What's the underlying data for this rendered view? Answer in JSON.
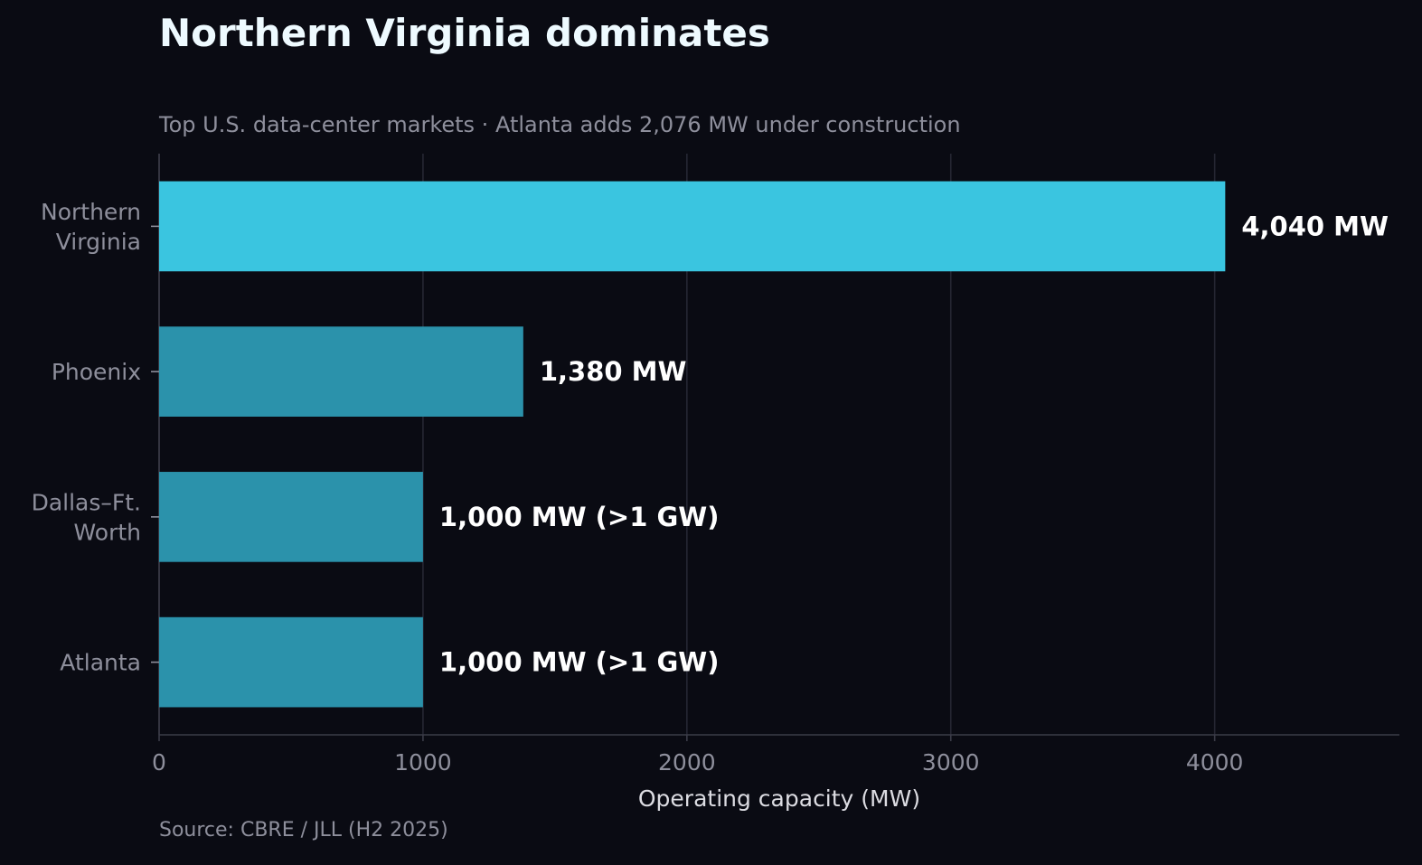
{
  "chart_data": {
    "type": "bar",
    "orientation": "horizontal",
    "title": "Northern Virginia dominates",
    "subtitle": "Top U.S. data-center markets · Atlanta adds 2,076 MW under construction",
    "source": "Source: CBRE / JLL (H2 2025)",
    "xlabel": "Operating capacity (MW)",
    "ylabel": "",
    "xlim": [
      0,
      4700
    ],
    "xticks": [
      0,
      1000,
      2000,
      3000,
      4000
    ],
    "grid": "vertical",
    "categories": [
      [
        "Northern",
        "Virginia"
      ],
      [
        "Phoenix"
      ],
      [
        "Dallas–Ft.",
        "Worth"
      ],
      [
        "Atlanta"
      ]
    ],
    "values": [
      4040,
      1380,
      1000,
      1000
    ],
    "data_labels": [
      "4,040 MW",
      "1,380 MW",
      "1,000 MW (>1 GW)",
      "1,000 MW (>1 GW)"
    ],
    "colors": [
      "#3ac5e0",
      "#2b92ab",
      "#2b92ab",
      "#2b92ab"
    ]
  },
  "theme": {
    "background": "#0a0b13",
    "grid_color": "#262733",
    "axis_color": "#3b3c48",
    "tick_text_color": "#8e8f9c",
    "value_label_color": "#ffffff"
  }
}
